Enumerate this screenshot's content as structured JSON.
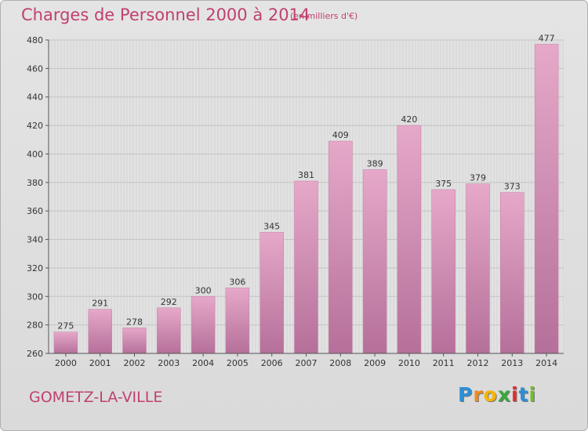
{
  "chart_data": {
    "type": "bar",
    "title": "Charges de Personnel 2000 à 2014",
    "subtitle": "(en milliers d'€)",
    "categories": [
      "2000",
      "2001",
      "2002",
      "2003",
      "2004",
      "2005",
      "2006",
      "2007",
      "2008",
      "2009",
      "2010",
      "2011",
      "2012",
      "2013",
      "2014"
    ],
    "values": [
      275,
      291,
      278,
      292,
      300,
      306,
      345,
      381,
      409,
      389,
      420,
      375,
      379,
      373,
      477
    ],
    "ylim": [
      260,
      480
    ],
    "yticks": [
      260,
      280,
      300,
      320,
      340,
      360,
      380,
      400,
      420,
      440,
      460,
      480
    ],
    "grid": true,
    "bar_color": "#d68bb3"
  },
  "commune": "GOMETZ-LA-VILLE",
  "logo": {
    "letters": [
      "P",
      "r",
      "o",
      "x",
      "i",
      "t",
      "i"
    ],
    "colors": [
      "#2c8fd6",
      "#f08a1c",
      "#f5b400",
      "#3aa83a",
      "#e0302e",
      "#2c8fd6",
      "#6fbf2a"
    ]
  }
}
